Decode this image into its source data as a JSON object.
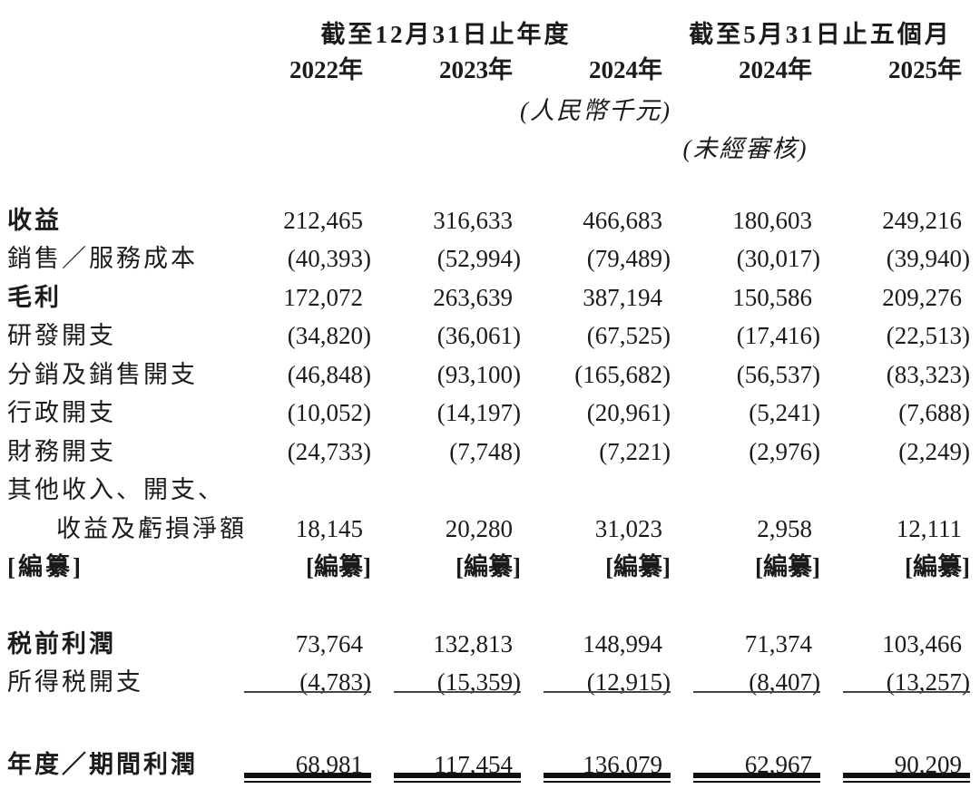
{
  "table": {
    "col_groups": [
      {
        "label": "截至12月31日止年度",
        "span": 3
      },
      {
        "label": "截至5月31日止五個月",
        "span": 2
      }
    ],
    "year_headers": [
      "2022年",
      "2023年",
      "2024年",
      "2024年",
      "2025年"
    ],
    "unit_note": "(人民幣千元)",
    "unaudited_note": "(未經審核)",
    "rows": {
      "revenue": {
        "label": "收益",
        "values": [
          "212,465",
          "316,633",
          "466,683",
          "180,603",
          "249,216"
        ]
      },
      "cost_of_sales": {
        "label": "銷售／服務成本",
        "values": [
          "(40,393)",
          "(52,994)",
          "(79,489)",
          "(30,017)",
          "(39,940)"
        ]
      },
      "gross_profit": {
        "label": "毛利",
        "values": [
          "172,072",
          "263,639",
          "387,194",
          "150,586",
          "209,276"
        ]
      },
      "rd_expenses": {
        "label": "研發開支",
        "values": [
          "(34,820)",
          "(36,061)",
          "(67,525)",
          "(17,416)",
          "(22,513)"
        ]
      },
      "distribution_selling_expenses": {
        "label": "分銷及銷售開支",
        "values": [
          "(46,848)",
          "(93,100)",
          "(165,682)",
          "(56,537)",
          "(83,323)"
        ]
      },
      "admin_expenses": {
        "label": "行政開支",
        "values": [
          "(10,052)",
          "(14,197)",
          "(20,961)",
          "(5,241)",
          "(7,688)"
        ]
      },
      "finance_costs": {
        "label": "財務開支",
        "values": [
          "(24,733)",
          "(7,748)",
          "(7,221)",
          "(2,976)",
          "(2,249)"
        ]
      },
      "other_income_line1": {
        "label": "其他收入、開支、"
      },
      "other_income_line2": {
        "label": "收益及虧損淨額",
        "values": [
          "18,145",
          "20,280",
          "31,023",
          "2,958",
          "12,111"
        ]
      },
      "redacted": {
        "label": "[編纂]",
        "values": [
          "[編纂]",
          "[編纂]",
          "[編纂]",
          "[編纂]",
          "[編纂]"
        ]
      },
      "profit_before_tax": {
        "label": "税前利潤",
        "values": [
          "73,764",
          "132,813",
          "148,994",
          "71,374",
          "103,466"
        ]
      },
      "income_tax_expense": {
        "label": "所得税開支",
        "values": [
          "(4,783)",
          "(15,359)",
          "(12,915)",
          "(8,407)",
          "(13,257)"
        ]
      },
      "profit_for_period": {
        "label": "年度／期間利潤",
        "values": [
          "68,981",
          "117,454",
          "136,079",
          "62,967",
          "90,209"
        ]
      }
    },
    "text_color": "#1b1b1b",
    "background_color": "#ffffff"
  }
}
